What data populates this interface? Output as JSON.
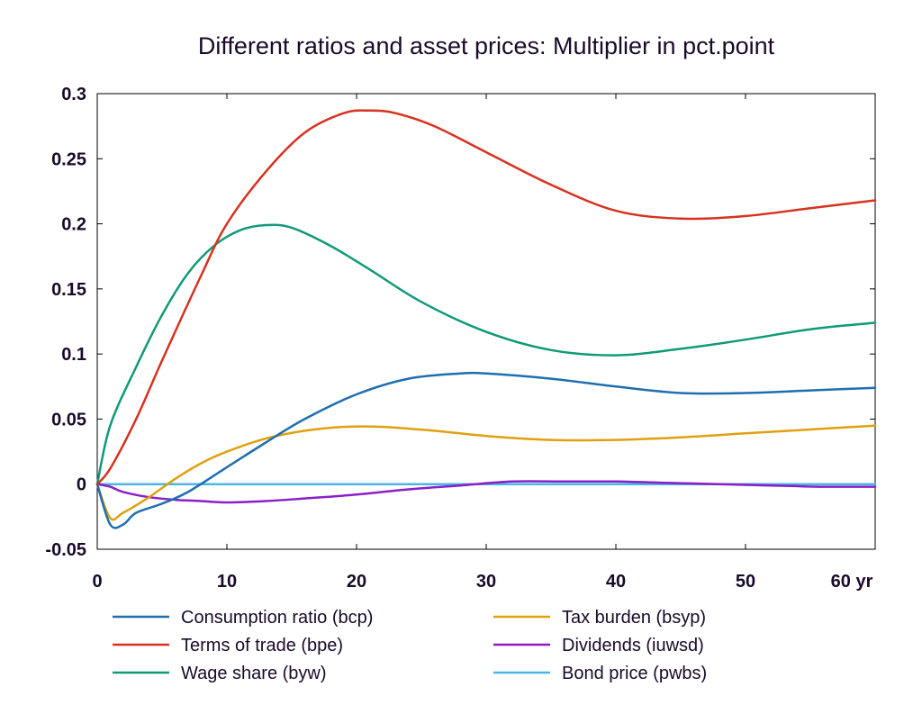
{
  "chart_data": {
    "type": "line",
    "title": "Different ratios and asset prices: Multiplier in pct.point",
    "xlabel": "",
    "ylabel": "",
    "xlim": [
      0,
      60
    ],
    "ylim": [
      -0.05,
      0.3
    ],
    "x_ticks": [
      0,
      10,
      20,
      30,
      40,
      50,
      60
    ],
    "x_tick_labels": [
      "0",
      "10",
      "20",
      "30",
      "40",
      "50",
      "60 yr"
    ],
    "y_ticks": [
      -0.05,
      0,
      0.05,
      0.1,
      0.15,
      0.2,
      0.25,
      0.3
    ],
    "y_tick_labels": [
      "-0.05",
      "0",
      "0.05",
      "0.1",
      "0.15",
      "0.2",
      "0.25",
      "0.3"
    ],
    "grid": false,
    "zero_line": true,
    "legend_position": "bottom",
    "series": [
      {
        "name": "Consumption ratio (bcp)",
        "color": "#1f6fb0",
        "x": [
          0,
          1,
          2,
          3,
          5,
          7,
          10,
          13,
          16,
          20,
          24,
          28,
          30,
          35,
          40,
          45,
          50,
          55,
          60
        ],
        "y": [
          0,
          -0.031,
          -0.031,
          -0.022,
          -0.015,
          -0.006,
          0.013,
          0.032,
          0.05,
          0.069,
          0.081,
          0.085,
          0.085,
          0.081,
          0.075,
          0.07,
          0.07,
          0.072,
          0.074
        ]
      },
      {
        "name": "Terms of trade (bpe)",
        "color": "#d7321f",
        "x": [
          0,
          1,
          3,
          5,
          8,
          10,
          13,
          16,
          19,
          21,
          23,
          26,
          30,
          35,
          40,
          45,
          50,
          55,
          60
        ],
        "y": [
          0,
          0.012,
          0.05,
          0.095,
          0.16,
          0.2,
          0.24,
          0.27,
          0.285,
          0.287,
          0.285,
          0.275,
          0.255,
          0.23,
          0.21,
          0.204,
          0.206,
          0.212,
          0.218
        ]
      },
      {
        "name": "Wage share (byw)",
        "color": "#0f9a78",
        "x": [
          0,
          1,
          3,
          5,
          7,
          9,
          11,
          13,
          15,
          18,
          21,
          25,
          30,
          35,
          40,
          45,
          50,
          55,
          60
        ],
        "y": [
          0,
          0.045,
          0.09,
          0.13,
          0.162,
          0.183,
          0.195,
          0.199,
          0.197,
          0.183,
          0.165,
          0.14,
          0.117,
          0.103,
          0.099,
          0.104,
          0.111,
          0.119,
          0.124
        ]
      },
      {
        "name": "Tax burden (bsyp)",
        "color": "#e0a010",
        "x": [
          0,
          1,
          2,
          4,
          6,
          8,
          10,
          13,
          16,
          19,
          22,
          26,
          30,
          35,
          40,
          45,
          50,
          55,
          60
        ],
        "y": [
          0,
          -0.026,
          -0.022,
          -0.01,
          0.004,
          0.016,
          0.025,
          0.035,
          0.041,
          0.044,
          0.044,
          0.041,
          0.037,
          0.034,
          0.034,
          0.036,
          0.039,
          0.042,
          0.045
        ]
      },
      {
        "name": "Dividends (iuwsd)",
        "color": "#8a1fc8",
        "x": [
          0,
          1,
          2,
          4,
          6,
          8,
          10,
          13,
          16,
          20,
          24,
          28,
          32,
          36,
          40,
          44,
          48,
          52,
          56,
          60
        ],
        "y": [
          0,
          -0.002,
          -0.006,
          -0.01,
          -0.012,
          -0.013,
          -0.014,
          -0.013,
          -0.011,
          -0.008,
          -0.004,
          -0.001,
          0.002,
          0.002,
          0.002,
          0.001,
          0.0,
          -0.001,
          -0.002,
          -0.002
        ]
      },
      {
        "name": "Bond price (pwbs)",
        "color": "#4ab6e6",
        "x": [
          0,
          10,
          20,
          30,
          40,
          50,
          60
        ],
        "y": [
          0,
          0,
          0,
          0,
          0,
          0,
          0
        ]
      }
    ]
  }
}
